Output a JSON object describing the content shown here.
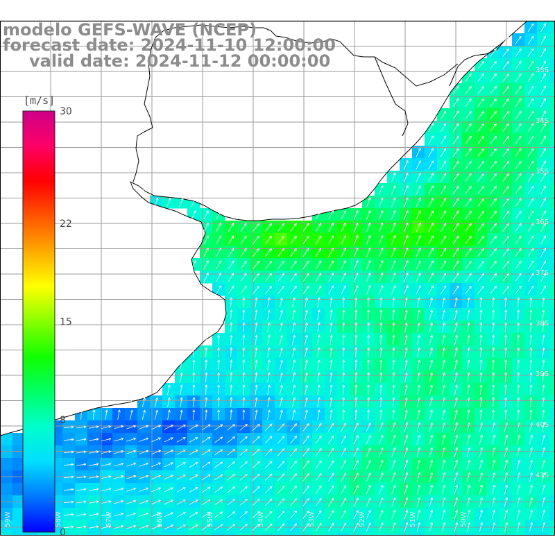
{
  "title": {
    "line1": "modelo GEFS-WAVE (NCEP)",
    "line2": "forecast date: 2024-11-10 12:00:00",
    "line3": "valid date: 2024-11-12 00:00:00"
  },
  "colorbar": {
    "unit": "[m/s]",
    "range": [
      0,
      30
    ],
    "ticks": [
      {
        "value": 30,
        "label": "30"
      },
      {
        "value": 22,
        "label": "22"
      },
      {
        "value": 15,
        "label": "15"
      },
      {
        "value": 8,
        "label": "8"
      },
      {
        "value": 0,
        "label": "0"
      }
    ],
    "colors": [
      "#0000ff",
      "#0077ff",
      "#00ddff",
      "#00ffcc",
      "#00ff66",
      "#11ff00",
      "#88ff00",
      "#ffff00",
      "#ffaa00",
      "#ff5500",
      "#ff0000",
      "#ff0066",
      "#cc0088"
    ]
  },
  "map": {
    "land_color": "#ffffff",
    "grid_color": "#9a9a9a",
    "coastline_color": "#000000",
    "lat_labels": [
      "33S",
      "34S",
      "35S",
      "36S",
      "37S",
      "38S",
      "39S",
      "40S",
      "41S"
    ],
    "lon_labels": [
      "59W",
      "58W",
      "57W",
      "56W",
      "55W",
      "54W",
      "53W",
      "52W",
      "51W",
      "50W"
    ]
  }
}
